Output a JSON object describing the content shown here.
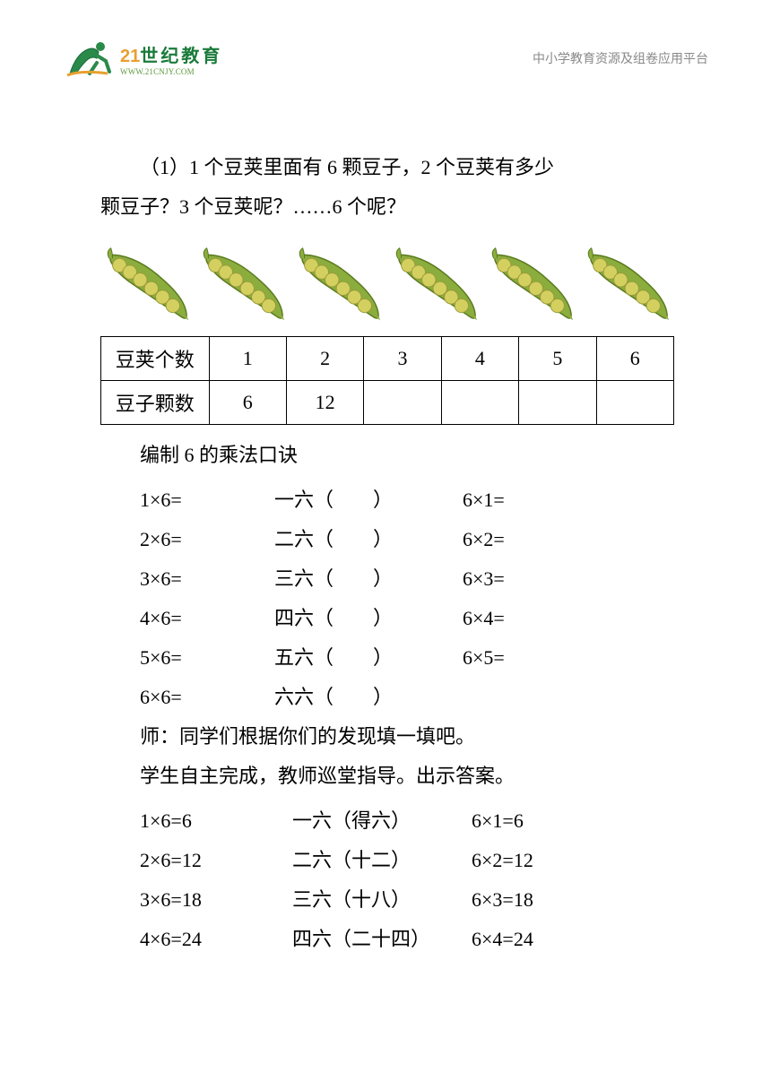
{
  "header": {
    "logo_main": "世纪教育",
    "logo_prefix": "21",
    "logo_sub": "WWW.21CNJY.COM",
    "right_text": "中小学教育资源及组卷应用平台"
  },
  "question": {
    "line1": "（1）1 个豆荚里面有 6 颗豆子，2 个豆荚有多少",
    "line2": "颗豆子？3 个豆荚呢？……6 个呢？"
  },
  "bean_pod": {
    "shell_color": "#8aad3e",
    "shell_stroke": "#5a7a1e",
    "bean_color": "#d4d060",
    "bean_stroke": "#9a9a3a",
    "count": 6
  },
  "table": {
    "row1_header": "豆荚个数",
    "row1_cells": [
      "1",
      "2",
      "3",
      "4",
      "5",
      "6"
    ],
    "row2_header": "豆子颗数",
    "row2_cells": [
      "6",
      "12",
      "",
      "",
      "",
      ""
    ]
  },
  "section_title": "编制 6 的乘法口诀",
  "blanks": [
    {
      "c1": "1×6=",
      "c2": "一六（　　）",
      "c3": "6×1="
    },
    {
      "c1": "2×6=",
      "c2": "二六（　　）",
      "c3": "6×2="
    },
    {
      "c1": "3×6=",
      "c2": "三六（　　）",
      "c3": "6×3="
    },
    {
      "c1": "4×6=",
      "c2": "四六（　　）",
      "c3": "6×4="
    },
    {
      "c1": "5×6=",
      "c2": "五六（　　）",
      "c3": "6×5="
    },
    {
      "c1": "6×6=",
      "c2": "六六（　　）",
      "c3": ""
    }
  ],
  "teacher_line": "师：同学们根据你们的发现填一填吧。",
  "student_line": "学生自主完成，教师巡堂指导。出示答案。",
  "answers": [
    {
      "c1": "1×6=6",
      "c2": "一六（得六）",
      "c3": "6×1=6"
    },
    {
      "c1": "2×6=12",
      "c2": "二六（十二）",
      "c3": "6×2=12"
    },
    {
      "c1": "3×6=18",
      "c2": "三六（十八）",
      "c3": "6×3=18"
    },
    {
      "c1": "4×6=24",
      "c2": "四六（二十四）",
      "c3": "6×4=24"
    }
  ]
}
